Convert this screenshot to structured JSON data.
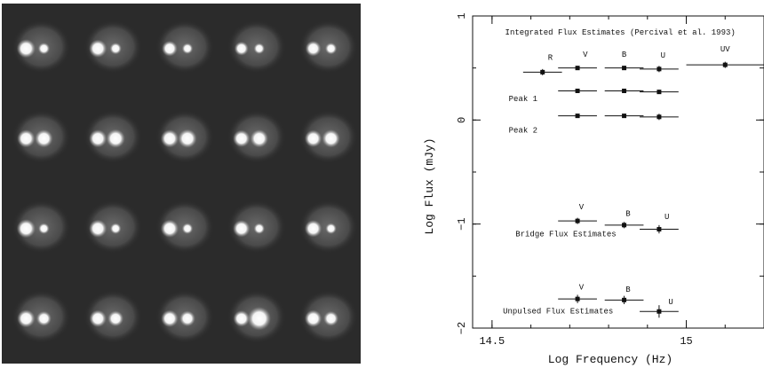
{
  "figure": {
    "left_panel": {
      "rows": 4,
      "cols": 5,
      "frames": [
        [
          0.3,
          0.12
        ],
        [
          0.28,
          0.12
        ],
        [
          0.22,
          0.1
        ],
        [
          0.18,
          0.1
        ],
        [
          0.22,
          0.12
        ],
        [
          0.28,
          0.28
        ],
        [
          0.28,
          0.3
        ],
        [
          0.28,
          0.3
        ],
        [
          0.26,
          0.28
        ],
        [
          0.26,
          0.28
        ],
        [
          0.3,
          0.1
        ],
        [
          0.28,
          0.1
        ],
        [
          0.28,
          0.1
        ],
        [
          0.26,
          0.1
        ],
        [
          0.26,
          0.1
        ],
        [
          0.28,
          0.2
        ],
        [
          0.26,
          0.22
        ],
        [
          0.26,
          0.22
        ],
        [
          0.24,
          0.42
        ],
        [
          0.26,
          0.2
        ]
      ]
    }
  },
  "chart_data": {
    "type": "scatter",
    "xlabel": "Log Frequency (Hz)",
    "ylabel": "Log Flux (mJy)",
    "xlim": [
      14.45,
      15.2
    ],
    "ylim": [
      -2.0,
      1.0
    ],
    "xticks": [
      14.5,
      15
    ],
    "yticks": [
      1,
      0,
      -1,
      -2
    ],
    "series": [
      {
        "points": [
          {
            "x": 14.63,
            "y": 0.46,
            "xerr": 0.05,
            "yerr": 0.03
          },
          {
            "x": 14.72,
            "y": 0.5,
            "xerr": 0.05,
            "yerr": 0.02
          },
          {
            "x": 14.84,
            "y": 0.5,
            "xerr": 0.05,
            "yerr": 0.02
          },
          {
            "x": 14.93,
            "y": 0.49,
            "xerr": 0.05,
            "yerr": 0.03
          },
          {
            "x": 15.1,
            "y": 0.53,
            "xerr": 0.1,
            "yerr": 0.03
          }
        ]
      },
      {
        "points": [
          {
            "x": 14.72,
            "y": 0.28,
            "xerr": 0.05,
            "yerr": 0.02
          },
          {
            "x": 14.84,
            "y": 0.28,
            "xerr": 0.05,
            "yerr": 0.02
          },
          {
            "x": 14.93,
            "y": 0.27,
            "xerr": 0.05,
            "yerr": 0.02
          }
        ]
      },
      {
        "points": [
          {
            "x": 14.72,
            "y": 0.04,
            "xerr": 0.05,
            "yerr": 0.02
          },
          {
            "x": 14.84,
            "y": 0.04,
            "xerr": 0.05,
            "yerr": 0.02
          },
          {
            "x": 14.93,
            "y": 0.03,
            "xerr": 0.05,
            "yerr": 0.03
          }
        ]
      },
      {
        "points": [
          {
            "x": 14.72,
            "y": -0.97,
            "xerr": 0.05,
            "yerr": 0.03
          },
          {
            "x": 14.84,
            "y": -1.01,
            "xerr": 0.05,
            "yerr": 0.03
          },
          {
            "x": 14.93,
            "y": -1.05,
            "xerr": 0.05,
            "yerr": 0.04
          }
        ]
      },
      {
        "points": [
          {
            "x": 14.72,
            "y": -1.72,
            "xerr": 0.05,
            "yerr": 0.04
          },
          {
            "x": 14.84,
            "y": -1.73,
            "xerr": 0.05,
            "yerr": 0.04
          },
          {
            "x": 14.93,
            "y": -1.84,
            "xerr": 0.05,
            "yerr": 0.06
          }
        ]
      }
    ],
    "annotations": [
      {
        "text": "Integrated Flux Estimates (Percival et al. 1993)",
        "x": 14.83,
        "y": 0.82
      },
      {
        "text": "R",
        "x": 14.65,
        "y": 0.58
      },
      {
        "text": "V",
        "x": 14.74,
        "y": 0.61
      },
      {
        "text": "B",
        "x": 14.84,
        "y": 0.61
      },
      {
        "text": "U",
        "x": 14.94,
        "y": 0.6
      },
      {
        "text": "UV",
        "x": 15.1,
        "y": 0.66
      },
      {
        "text": "Peak 1",
        "x": 14.58,
        "y": 0.18
      },
      {
        "text": "Peak 2",
        "x": 14.58,
        "y": -0.12
      },
      {
        "text": "V",
        "x": 14.73,
        "y": -0.86
      },
      {
        "text": "B",
        "x": 14.85,
        "y": -0.92
      },
      {
        "text": "U",
        "x": 14.95,
        "y": -0.95
      },
      {
        "text": "Bridge Flux Estimates",
        "x": 14.69,
        "y": -1.12
      },
      {
        "text": "V",
        "x": 14.73,
        "y": -1.63
      },
      {
        "text": "B",
        "x": 14.85,
        "y": -1.65
      },
      {
        "text": "U",
        "x": 14.96,
        "y": -1.77
      },
      {
        "text": "Unpulsed Flux Estimates",
        "x": 14.67,
        "y": -1.86
      }
    ]
  }
}
